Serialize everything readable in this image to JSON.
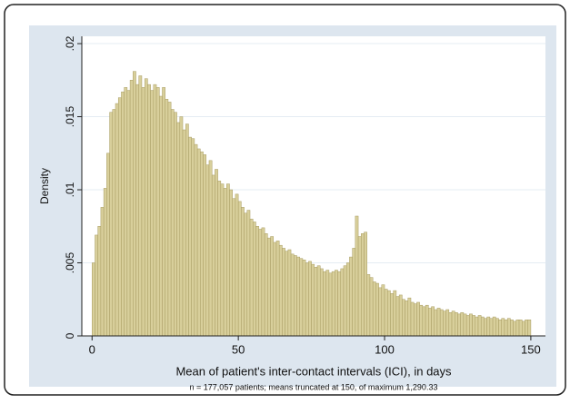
{
  "chart_data": {
    "type": "histogram",
    "x_label": "Mean of patient's inter-contact intervals (ICI), in days",
    "y_label": "Density",
    "note": "n = 177,057 patients; means truncated at 150, of maximum 1,290.33",
    "bins": [
      0,
      1,
      2,
      3,
      4,
      5,
      6,
      7,
      8,
      9,
      10,
      11,
      12,
      13,
      14,
      15,
      16,
      17,
      18,
      19,
      20,
      21,
      22,
      23,
      24,
      25,
      26,
      27,
      28,
      29,
      30,
      31,
      32,
      33,
      34,
      35,
      36,
      37,
      38,
      39,
      40,
      41,
      42,
      43,
      44,
      45,
      46,
      47,
      48,
      49,
      50,
      51,
      52,
      53,
      54,
      55,
      56,
      57,
      58,
      59,
      60,
      61,
      62,
      63,
      64,
      65,
      66,
      67,
      68,
      69,
      70,
      71,
      72,
      73,
      74,
      75,
      76,
      77,
      78,
      79,
      80,
      81,
      82,
      83,
      84,
      85,
      86,
      87,
      88,
      89,
      90,
      91,
      92,
      93,
      94,
      95,
      96,
      97,
      98,
      99,
      100,
      101,
      102,
      103,
      104,
      105,
      106,
      107,
      108,
      109,
      110,
      111,
      112,
      113,
      114,
      115,
      116,
      117,
      118,
      119,
      120,
      121,
      122,
      123,
      124,
      125,
      126,
      127,
      128,
      129,
      130,
      131,
      132,
      133,
      134,
      135,
      136,
      137,
      138,
      139,
      140,
      141,
      142,
      143,
      144,
      145,
      146,
      147,
      148,
      149,
      150
    ],
    "values": [
      0.005,
      0.0069,
      0.0075,
      0.0088,
      0.0101,
      0.0125,
      0.0153,
      0.0155,
      0.0159,
      0.0163,
      0.0167,
      0.017,
      0.0168,
      0.0175,
      0.0181,
      0.0172,
      0.0178,
      0.017,
      0.0176,
      0.0172,
      0.0168,
      0.0172,
      0.017,
      0.0164,
      0.017,
      0.0162,
      0.016,
      0.0155,
      0.0153,
      0.0146,
      0.015,
      0.0141,
      0.0145,
      0.0136,
      0.0135,
      0.0131,
      0.0128,
      0.0126,
      0.0124,
      0.0117,
      0.012,
      0.011,
      0.0114,
      0.0106,
      0.0104,
      0.0101,
      0.0104,
      0.01,
      0.0094,
      0.0097,
      0.0092,
      0.0088,
      0.0084,
      0.0086,
      0.008,
      0.0078,
      0.0075,
      0.0073,
      0.0074,
      0.007,
      0.0067,
      0.0068,
      0.0064,
      0.0065,
      0.0062,
      0.006,
      0.0058,
      0.0059,
      0.0056,
      0.0055,
      0.0054,
      0.0053,
      0.0052,
      0.005,
      0.0051,
      0.0049,
      0.0047,
      0.0048,
      0.0046,
      0.0044,
      0.0045,
      0.0043,
      0.0044,
      0.0045,
      0.0044,
      0.0046,
      0.0048,
      0.005,
      0.0054,
      0.006,
      0.0082,
      0.0068,
      0.007,
      0.0071,
      0.0042,
      0.004,
      0.0037,
      0.0036,
      0.0033,
      0.0035,
      0.0032,
      0.0031,
      0.0029,
      0.0031,
      0.0027,
      0.0028,
      0.0025,
      0.0024,
      0.0026,
      0.0023,
      0.0022,
      0.0023,
      0.0021,
      0.002,
      0.0021,
      0.0019,
      0.002,
      0.0018,
      0.0019,
      0.0018,
      0.0017,
      0.0018,
      0.0016,
      0.0017,
      0.0016,
      0.0015,
      0.0016,
      0.0015,
      0.0014,
      0.0015,
      0.0014,
      0.0013,
      0.0014,
      0.0013,
      0.0012,
      0.0013,
      0.0012,
      0.0013,
      0.0012,
      0.0011,
      0.0012,
      0.0011,
      0.0012,
      0.0011,
      0.001,
      0.0011,
      0.0011,
      0.001,
      0.0011,
      0.0011
    ],
    "color": "#d8cf9b",
    "edge_color": "#a89c62",
    "xlim": [
      -3.5,
      155
    ],
    "xticks": [
      0,
      50,
      100,
      150
    ],
    "ylim": [
      0,
      0.0205
    ],
    "yticks": [
      0,
      {
        "value": 0.005,
        "label": ".005"
      },
      {
        "value": 0.01,
        "label": ".01"
      },
      {
        "value": 0.015,
        "label": ".015"
      },
      {
        "value": 0.02,
        "label": ".02"
      }
    ],
    "grid": true
  }
}
